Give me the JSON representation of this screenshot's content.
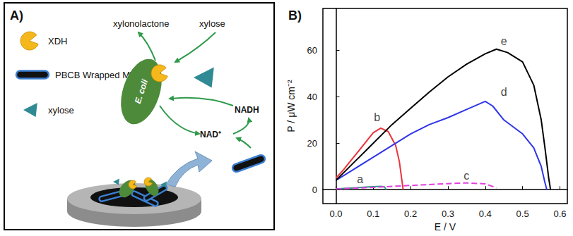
{
  "chart_data": {
    "type": "line",
    "title": "B)",
    "x_label": "E / V",
    "y_label": "P / μW cm⁻²",
    "xlim": [
      -0.035,
      0.62
    ],
    "xticks": [
      {
        "value": 0,
        "label": "0.0"
      },
      {
        "value": 0.1,
        "label": "0.1"
      },
      {
        "value": 0.2,
        "label": "0.2"
      },
      {
        "value": 0.3,
        "label": "0.3"
      },
      {
        "value": 0.4,
        "label": "0.4"
      },
      {
        "value": 0.5,
        "label": "0.5"
      },
      {
        "value": 0.6,
        "label": "0.6"
      }
    ],
    "ylim": [
      -6,
      78
    ],
    "yticks": [
      0,
      20,
      40,
      60
    ],
    "grid": false,
    "series": [
      {
        "name": "a",
        "color": "#2f9a8a",
        "line_style": "solid",
        "label_pos": [
          0.065,
          4.5
        ],
        "x": [
          0,
          0.02,
          0.04,
          0.06,
          0.08,
          0.1,
          0.12,
          0.13,
          0.135
        ],
        "values": [
          0.3,
          0.5,
          0.7,
          0.9,
          1.1,
          1.3,
          1.4,
          1.2,
          0
        ]
      },
      {
        "name": "b",
        "color": "#e8343a",
        "line_style": "solid",
        "label_pos": [
          0.11,
          31
        ],
        "x": [
          0,
          0.02,
          0.04,
          0.06,
          0.08,
          0.1,
          0.12,
          0.14,
          0.16,
          0.17,
          0.18
        ],
        "values": [
          5,
          8.5,
          12.5,
          16.5,
          20.5,
          24.5,
          26.5,
          25,
          19,
          12,
          0
        ]
      },
      {
        "name": "c",
        "color": "#e040e0",
        "line_style": "dashed",
        "label_pos": [
          0.35,
          6
        ],
        "x": [
          0,
          0.1,
          0.2,
          0.3,
          0.35,
          0.4,
          0.43
        ],
        "values": [
          0.3,
          1.0,
          1.8,
          2.6,
          2.9,
          2.5,
          0.8
        ]
      },
      {
        "name": "d",
        "color": "#2f35e8",
        "line_style": "solid",
        "label_pos": [
          0.45,
          42
        ],
        "x": [
          0,
          0.05,
          0.1,
          0.15,
          0.2,
          0.25,
          0.3,
          0.35,
          0.4,
          0.42,
          0.45,
          0.5,
          0.53,
          0.55,
          0.56,
          0.565
        ],
        "values": [
          4,
          9,
          14,
          19,
          24,
          28,
          31,
          34.5,
          38,
          36,
          30,
          24,
          18,
          10,
          3,
          0
        ]
      },
      {
        "name": "e",
        "color": "#000000",
        "line_style": "solid",
        "label_pos": [
          0.45,
          64
        ],
        "x": [
          0,
          0.05,
          0.1,
          0.15,
          0.2,
          0.25,
          0.3,
          0.35,
          0.4,
          0.43,
          0.46,
          0.5,
          0.53,
          0.55,
          0.56,
          0.57,
          0.575
        ],
        "values": [
          4,
          12,
          20,
          28,
          35,
          42,
          48.5,
          54,
          58.5,
          60.5,
          59,
          55,
          45,
          30,
          18,
          5,
          0
        ]
      }
    ]
  },
  "diagram": {
    "panel_label": "A)",
    "legend": [
      {
        "label": "XDH"
      },
      {
        "label": "PBCB Wrapped MWCNT"
      },
      {
        "label": "xylose"
      }
    ],
    "labels": {
      "product": "xylonolactone",
      "substrate": "xylose",
      "cell": "E. coli",
      "oxidized": "NAD⁺",
      "reduced": "NADH"
    }
  }
}
